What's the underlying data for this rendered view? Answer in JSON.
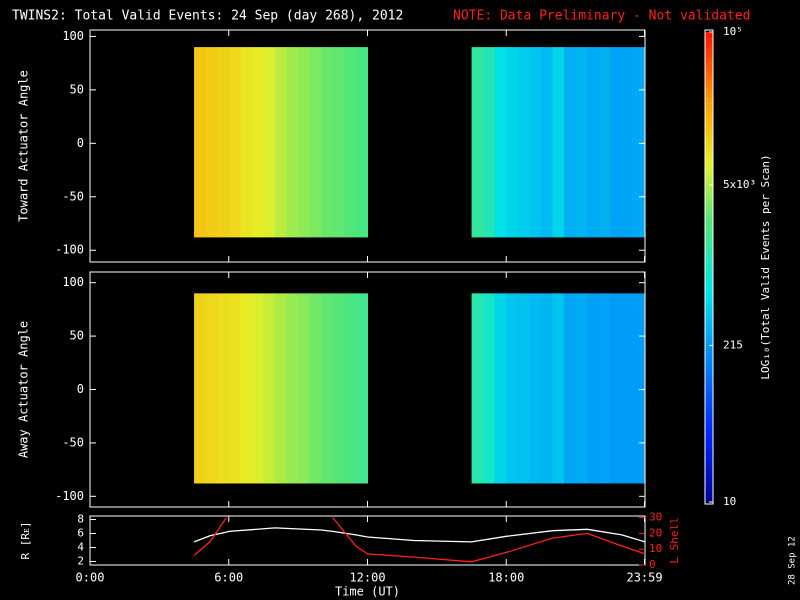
{
  "title": "TWINS2: Total Valid Events: 24 Sep (day 268), 2012",
  "note": "NOTE: Data Preliminary - Not validated",
  "side_label": "28 Sep 12",
  "colorbar": {
    "label": "LOG₁₀(Total Valid Events per Scan)",
    "lim": [
      10,
      100000
    ],
    "log": true,
    "ticks": [
      {
        "value": 10,
        "label": "10"
      },
      {
        "value": 215,
        "label": "215"
      },
      {
        "value": 5000,
        "label": "5x10³"
      },
      {
        "value": 100000,
        "label": "10⁵"
      }
    ]
  },
  "chart_data": [
    {
      "type": "heatmap",
      "ylabel": "Toward Actuator Angle",
      "xlim": [
        0,
        24
      ],
      "ylim": [
        -111,
        106
      ],
      "yticks": [
        -100,
        -50,
        0,
        50,
        100
      ],
      "xticks": [
        {
          "value": 0,
          "label": "0:00"
        },
        {
          "value": 6,
          "label": "6:00"
        },
        {
          "value": 12,
          "label": "12:00"
        },
        {
          "value": 18,
          "label": "18:00"
        },
        {
          "value": 23.98,
          "label": "23:59"
        }
      ],
      "y_edges": [
        -88,
        90
      ],
      "bin_width": 0.5,
      "x": [
        4.5,
        5,
        5.5,
        6,
        6.5,
        7,
        7.5,
        8,
        8.5,
        9,
        9.5,
        10,
        10.5,
        11,
        11.5,
        16.5,
        17,
        17.5,
        18,
        18.5,
        19,
        19.5,
        20,
        20.5,
        21,
        21.5,
        22,
        22.5,
        23,
        23.5
      ],
      "values": [
        14000,
        13000,
        12000,
        11000,
        9000,
        8000,
        7000,
        5500,
        4500,
        4000,
        3500,
        3000,
        2800,
        2500,
        2200,
        1500,
        1200,
        600,
        500,
        450,
        400,
        350,
        500,
        300,
        320,
        280,
        300,
        250,
        260,
        270
      ]
    },
    {
      "type": "heatmap",
      "ylabel": "Away Actuator Angle",
      "xlim": [
        0,
        24
      ],
      "ylim": [
        -110,
        110
      ],
      "yticks": [
        -100,
        -50,
        0,
        50,
        100
      ],
      "y_edges": [
        -88,
        90
      ],
      "bin_width": 0.5,
      "x": [
        4.5,
        5,
        5.5,
        6,
        6.5,
        7,
        7.5,
        8,
        8.5,
        9,
        9.5,
        10,
        10.5,
        11,
        11.5,
        16.5,
        17,
        17.5,
        18,
        18.5,
        19,
        19.5,
        20,
        20.5,
        21,
        21.5,
        22,
        22.5,
        23,
        23.5
      ],
      "values": [
        12000,
        11000,
        10000,
        9500,
        8000,
        7000,
        6000,
        5000,
        4200,
        3800,
        3200,
        2800,
        2600,
        2300,
        2000,
        1300,
        900,
        500,
        400,
        380,
        350,
        320,
        400,
        260,
        280,
        240,
        250,
        220,
        230,
        230
      ]
    },
    {
      "type": "line",
      "ylabel": "R [Rᴇ]",
      "y2label": "L Shell",
      "xlabel": "Time (UT)",
      "xlim": [
        0,
        24
      ],
      "ylim": [
        1.5,
        8.5
      ],
      "yticks": [
        2,
        4,
        6,
        8
      ],
      "y2lim": [
        0,
        31
      ],
      "y2ticks": [
        0,
        10,
        20,
        30
      ],
      "xticks": [
        {
          "value": 0,
          "label": "0:00"
        },
        {
          "value": 6,
          "label": "6:00"
        },
        {
          "value": 12,
          "label": "12:00"
        },
        {
          "value": 18,
          "label": "18:00"
        },
        {
          "value": 23.98,
          "label": "23:59"
        }
      ],
      "x": [
        4.5,
        5.2,
        5.9,
        6,
        8,
        10,
        10.5,
        11.5,
        12,
        14,
        16.5,
        18,
        20,
        21.5,
        23,
        24
      ],
      "series": [
        {
          "name": "R",
          "color": "#ffffff",
          "values": [
            4.8,
            5.7,
            6.2,
            6.3,
            6.8,
            6.5,
            6.3,
            5.8,
            5.5,
            5.0,
            4.8,
            5.6,
            6.4,
            6.6,
            5.8,
            4.8
          ]
        },
        {
          "name": "L Shell",
          "color": "#ff2020",
          "axis": "y2",
          "values": [
            6,
            15,
            30,
            null,
            null,
            null,
            30,
            12,
            7,
            5,
            2,
            8,
            17,
            20,
            12,
            7
          ]
        }
      ]
    }
  ]
}
